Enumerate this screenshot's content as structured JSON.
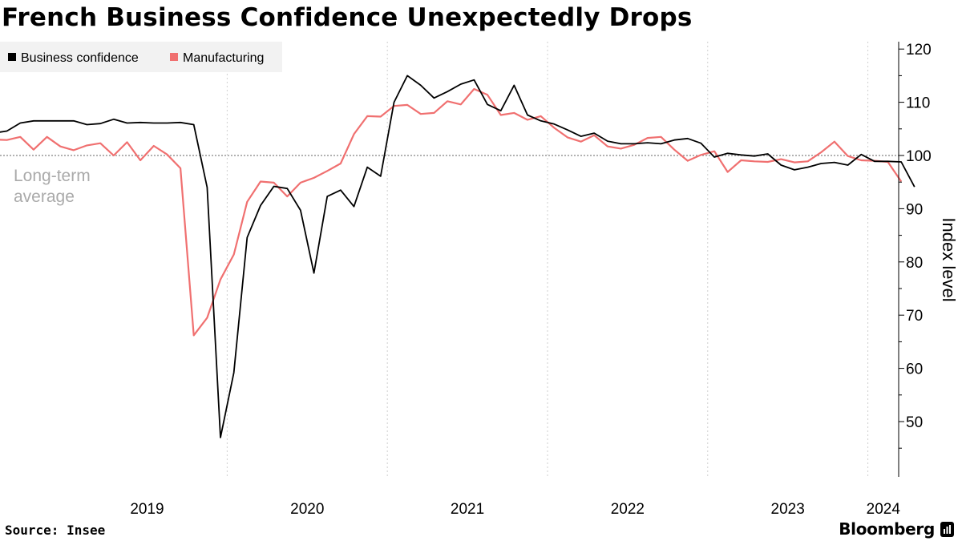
{
  "title": "French Business Confidence Unexpectedly Drops",
  "source": "Source: Insee",
  "brand": "Bloomberg",
  "colors": {
    "business_confidence": "#000000",
    "manufacturing": "#f07070",
    "grid": "#cfcfcf",
    "reference_line": "#999999",
    "annotation": "#aaaaaa"
  },
  "chart_data": {
    "type": "line",
    "title": "French Business Confidence Unexpectedly Drops",
    "ylabel": "Index level",
    "xlabel": "",
    "ylim": [
      42,
      122
    ],
    "y_ticks": [
      50,
      60,
      70,
      80,
      90,
      100,
      110,
      120
    ],
    "y_axis_position": "right",
    "grid": "vertical dotted year separators",
    "legend_position": "top-left",
    "x_tick_labels": [
      "2019",
      "2020",
      "2021",
      "2022",
      "2023",
      "2024"
    ],
    "reference_line": {
      "value": 100,
      "label": "Long-term average"
    },
    "x_start": "2018-07",
    "x_frequency": "monthly",
    "series": [
      {
        "name": "Business confidence",
        "color": "#000000",
        "values": [
          104.2,
          104.6,
          106.1,
          106.5,
          106.5,
          106.5,
          106.5,
          105.8,
          106.0,
          106.8,
          106.1,
          106.2,
          106.1,
          106.1,
          106.2,
          105.8,
          94.0,
          47.0,
          59.2,
          84.6,
          90.6,
          94.2,
          93.8,
          89.7,
          77.9,
          92.3,
          93.5,
          90.4,
          97.8,
          96.1,
          110.0,
          115.0,
          113.2,
          110.8,
          112.0,
          113.4,
          114.2,
          109.6,
          108.4,
          113.2,
          107.6,
          106.5,
          105.9,
          104.8,
          103.6,
          104.2,
          102.7,
          102.2,
          102.2,
          102.4,
          102.2,
          102.9,
          103.2,
          102.3,
          99.7,
          100.4,
          100.1,
          99.9,
          100.3,
          98.2,
          97.3,
          97.8,
          98.5,
          98.7,
          98.2,
          100.2,
          98.9,
          98.9,
          98.8,
          94.1
        ]
      },
      {
        "name": "Manufacturing",
        "color": "#f07070",
        "values": [
          103.0,
          102.9,
          103.5,
          101.1,
          103.5,
          101.7,
          101.0,
          101.9,
          102.3,
          100.0,
          102.5,
          99.1,
          101.8,
          100.2,
          97.6,
          66.2,
          69.5,
          76.7,
          81.4,
          91.3,
          95.1,
          94.9,
          92.3,
          94.9,
          95.8,
          97.1,
          98.5,
          104.0,
          107.4,
          107.3,
          109.3,
          109.5,
          107.8,
          108.0,
          110.2,
          109.6,
          112.5,
          111.4,
          107.6,
          108.0,
          106.7,
          107.4,
          105.2,
          103.4,
          102.6,
          103.8,
          101.7,
          101.3,
          102.0,
          103.3,
          103.5,
          101.1,
          99.0,
          100.1,
          100.8,
          96.9,
          99.1,
          98.9,
          98.8,
          99.3,
          98.7,
          98.9,
          100.6,
          102.6,
          99.9,
          99.1,
          99.0,
          98.8,
          95.1
        ]
      }
    ]
  }
}
